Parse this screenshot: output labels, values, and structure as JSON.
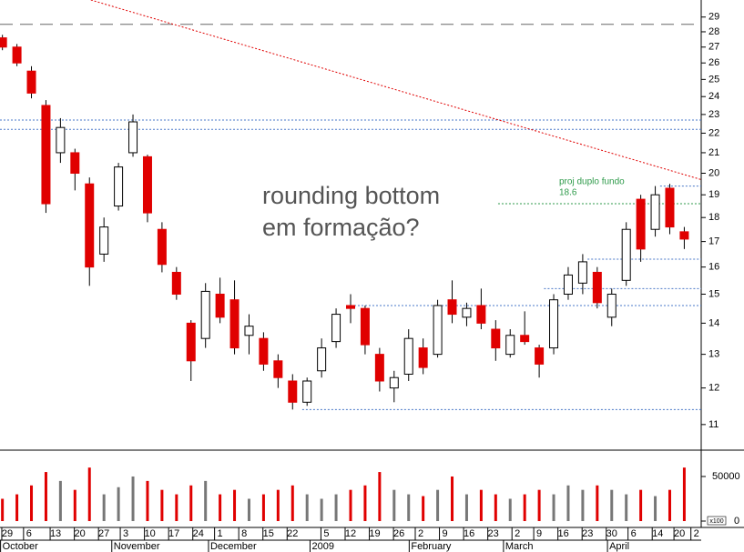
{
  "chart_data": [
    {
      "type": "candlestick",
      "log_scale": true,
      "x": [
        0,
        3,
        6,
        9,
        12,
        15,
        18,
        21,
        24,
        27,
        30,
        33,
        36,
        39,
        42,
        45,
        48,
        51,
        54,
        57,
        60,
        63,
        66,
        69,
        72,
        75,
        78,
        81,
        84,
        87,
        90,
        93,
        96,
        99,
        102,
        105,
        108,
        111,
        114,
        117,
        120,
        123,
        126,
        129,
        132,
        135,
        138,
        141
      ],
      "open": [
        27.6,
        27.0,
        25.5,
        23.5,
        21.0,
        21.0,
        19.5,
        16.5,
        18.5,
        21.0,
        20.8,
        17.5,
        15.8,
        14.0,
        13.5,
        15.0,
        14.8,
        13.6,
        13.5,
        12.8,
        12.2,
        11.6,
        12.5,
        13.4,
        14.6,
        14.5,
        13.0,
        12.0,
        12.4,
        13.2,
        13.0,
        14.8,
        14.2,
        14.6,
        13.8,
        13.0,
        13.6,
        13.2,
        13.2,
        15.0,
        15.4,
        15.8,
        14.2,
        15.5,
        18.8,
        17.5,
        19.3,
        17.4
      ],
      "high": [
        27.8,
        27.2,
        25.8,
        23.8,
        22.8,
        21.2,
        19.8,
        18.0,
        20.5,
        23.0,
        20.9,
        17.8,
        16.0,
        14.1,
        15.4,
        15.6,
        15.5,
        14.3,
        13.7,
        13.0,
        12.4,
        12.3,
        13.5,
        14.5,
        15.0,
        14.6,
        13.2,
        12.5,
        13.8,
        13.5,
        14.8,
        15.5,
        14.7,
        15.2,
        14.1,
        13.8,
        14.4,
        13.3,
        15.0,
        16.0,
        16.5,
        16.0,
        15.2,
        17.8,
        19.0,
        19.4,
        19.5,
        17.6
      ],
      "low": [
        26.8,
        25.8,
        23.9,
        18.2,
        20.5,
        19.2,
        15.3,
        16.2,
        18.3,
        20.8,
        17.8,
        15.8,
        14.8,
        12.2,
        13.2,
        14.0,
        13.0,
        13.0,
        12.5,
        12.0,
        11.4,
        11.5,
        12.3,
        13.2,
        14.0,
        13.0,
        11.9,
        11.6,
        12.2,
        12.4,
        12.9,
        14.0,
        13.9,
        13.8,
        12.8,
        12.9,
        13.3,
        12.3,
        13.0,
        14.8,
        15.0,
        14.5,
        13.9,
        15.3,
        16.2,
        17.2,
        17.3,
        16.7
      ],
      "close": [
        27.0,
        26.0,
        24.2,
        18.6,
        22.3,
        20.0,
        16.0,
        17.6,
        20.3,
        22.6,
        18.2,
        16.1,
        15.0,
        12.8,
        15.1,
        14.2,
        13.2,
        13.9,
        12.7,
        12.3,
        11.6,
        12.2,
        13.2,
        14.3,
        14.5,
        13.3,
        12.2,
        12.3,
        13.5,
        12.6,
        14.6,
        14.3,
        14.5,
        14.0,
        13.2,
        13.6,
        13.4,
        12.7,
        14.8,
        15.7,
        16.2,
        14.7,
        15.0,
        17.5,
        16.7,
        19.0,
        17.6,
        17.1
      ],
      "up_color": "#ffffff",
      "down_color": "#e00000",
      "xlim": [
        -0.5,
        144.5
      ],
      "ylim": [
        10.35,
        30.2
      ],
      "yticks": [
        11,
        12,
        13,
        14,
        15,
        16,
        17,
        18,
        19,
        20,
        21,
        22,
        23,
        24,
        25,
        26,
        27,
        28,
        29
      ],
      "hlines": [
        {
          "value": 28.5,
          "from": -0.5,
          "color": "#666666",
          "dash": "14 8"
        },
        {
          "value": 22.7,
          "from": -0.5,
          "color": "#4a78c8",
          "dash": "2 2"
        },
        {
          "value": 22.2,
          "from": -0.5,
          "color": "#4a78c8",
          "dash": "2 2"
        },
        {
          "value": 18.6,
          "from": 102.5,
          "color": "#2e9a4a",
          "dash": "2 2"
        },
        {
          "value": 19.4,
          "from": 136,
          "color": "#4a78c8",
          "dash": "2 2"
        },
        {
          "value": 16.3,
          "from": 121,
          "color": "#4a78c8",
          "dash": "2 2"
        },
        {
          "value": 15.2,
          "from": 112,
          "color": "#4a78c8",
          "dash": "2 2"
        },
        {
          "value": 14.6,
          "from": 72,
          "color": "#4a78c8",
          "dash": "2 2"
        },
        {
          "value": 11.4,
          "from": 62,
          "color": "#4a78c8",
          "dash": "2 2"
        }
      ],
      "trendline": {
        "x": [
          18.3,
          144.5
        ],
        "y": [
          30.2,
          19.7
        ],
        "color": "#e00000"
      },
      "annotations": [
        "rounding bottom",
        "em formação?",
        "proj duplo fundo",
        "18.6"
      ],
      "xticks": [
        {
          "value": 1,
          "label": "29"
        },
        {
          "value": 5.5,
          "label": "6"
        },
        {
          "value": 11,
          "label": "13"
        },
        {
          "value": 16,
          "label": "20"
        },
        {
          "value": 21,
          "label": "27"
        },
        {
          "value": 25.5,
          "label": "3"
        },
        {
          "value": 30.5,
          "label": "10"
        },
        {
          "value": 35.5,
          "label": "17"
        },
        {
          "value": 40.5,
          "label": "24"
        },
        {
          "value": 45,
          "label": "1"
        },
        {
          "value": 50,
          "label": "8"
        },
        {
          "value": 55,
          "label": "15"
        },
        {
          "value": 60,
          "label": "22"
        },
        {
          "value": 67,
          "label": "5"
        },
        {
          "value": 72,
          "label": "12"
        },
        {
          "value": 77,
          "label": "19"
        },
        {
          "value": 82,
          "label": "26"
        },
        {
          "value": 86.5,
          "label": "2"
        },
        {
          "value": 91.5,
          "label": "9"
        },
        {
          "value": 96.5,
          "label": "16"
        },
        {
          "value": 101.5,
          "label": "23"
        },
        {
          "value": 106.5,
          "label": "2"
        },
        {
          "value": 111,
          "label": "9"
        },
        {
          "value": 116,
          "label": "16"
        },
        {
          "value": 121,
          "label": "23"
        },
        {
          "value": 126,
          "label": "30"
        },
        {
          "value": 130.5,
          "label": "6"
        },
        {
          "value": 135.5,
          "label": "14"
        },
        {
          "value": 140,
          "label": "20"
        },
        {
          "value": 143.5,
          "label": "2"
        }
      ],
      "month_ticks": [
        {
          "value": 1.5,
          "label": "October"
        },
        {
          "value": 24.5,
          "label": "November"
        },
        {
          "value": 44.5,
          "label": "December"
        },
        {
          "value": 65.5,
          "label": "2009"
        },
        {
          "value": 86,
          "label": "February"
        },
        {
          "value": 105.5,
          "label": "March"
        },
        {
          "value": 127,
          "label": "April"
        }
      ]
    },
    {
      "type": "bar",
      "unit_label": "x100",
      "x": [
        0,
        3,
        6,
        9,
        12,
        15,
        18,
        21,
        24,
        27,
        30,
        33,
        36,
        39,
        42,
        45,
        48,
        51,
        54,
        57,
        60,
        63,
        66,
        69,
        72,
        75,
        78,
        81,
        84,
        87,
        90,
        93,
        96,
        99,
        102,
        105,
        108,
        111,
        114,
        117,
        120,
        123,
        126,
        129,
        132,
        135,
        138,
        141
      ],
      "values": [
        25000,
        30000,
        40000,
        55000,
        45000,
        35000,
        60000,
        30000,
        38000,
        50000,
        45000,
        35000,
        30000,
        40000,
        45000,
        30000,
        35000,
        25000,
        30000,
        35000,
        40000,
        30000,
        25000,
        30000,
        35000,
        40000,
        55000,
        35000,
        30000,
        28000,
        35000,
        50000,
        30000,
        35000,
        30000,
        25000,
        30000,
        35000,
        30000,
        40000,
        35000,
        40000,
        35000,
        30000,
        35000,
        28000,
        35000,
        60000
      ],
      "color": "#777777",
      "down_color": "#e00000",
      "xlim": [
        -0.5,
        144.5
      ],
      "ylim": [
        0,
        77500
      ],
      "yticks": [
        0,
        50000
      ]
    }
  ]
}
